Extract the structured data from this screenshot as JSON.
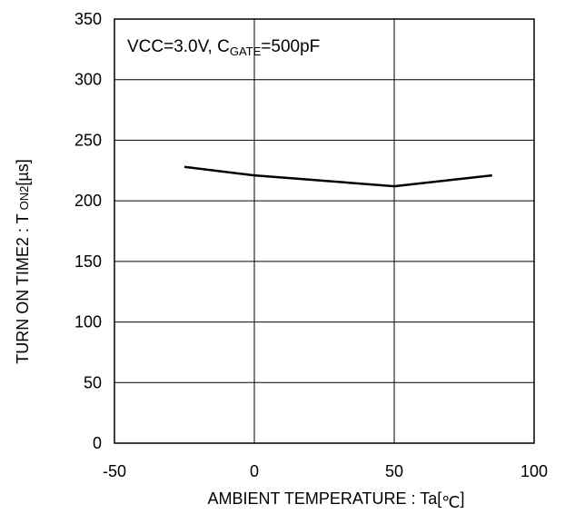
{
  "chart_data": {
    "type": "line",
    "xlabel_main": "AMBIENT TEMPERATURE : Ta[",
    "xlabel_unit_symbol": "℃",
    "xlabel_close": "]",
    "ylabel_main": "TURN ON TIME2 : T",
    "ylabel_sub": "ON2",
    "ylabel_unit": "[µs]",
    "annotation": {
      "part1": "VCC=3.0V, C",
      "sub": "GATE",
      "part2": "=500pF"
    },
    "xlim": [
      -50,
      100
    ],
    "ylim": [
      0,
      350
    ],
    "xticks": [
      "-50",
      "0",
      "50",
      "100"
    ],
    "yticks": [
      "0",
      "50",
      "100",
      "150",
      "200",
      "250",
      "300",
      "350"
    ],
    "grid": true,
    "series": [
      {
        "x": [
          -25,
          0,
          50,
          85
        ],
        "y": [
          228,
          221,
          212,
          221
        ],
        "color": "#000000"
      }
    ]
  }
}
